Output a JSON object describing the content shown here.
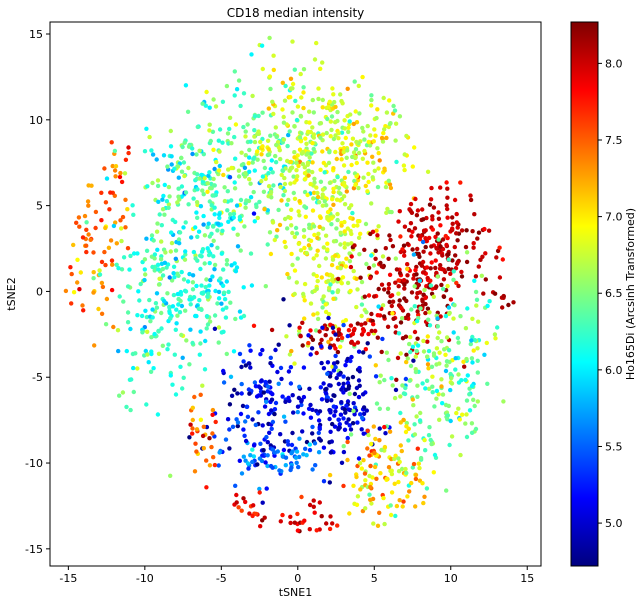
{
  "chart_data": {
    "type": "scatter",
    "title": "CD18 median intensity",
    "xlabel": "tSNE1",
    "ylabel": "tSNE2",
    "xlim": [
      -16.2,
      15.9
    ],
    "ylim": [
      -16.0,
      15.7
    ],
    "xticks": [
      -15,
      -10,
      -5,
      0,
      5,
      10,
      15
    ],
    "yticks": [
      -15,
      -10,
      -5,
      0,
      5,
      10,
      15
    ],
    "grid": false,
    "colormap": "jet",
    "colorbar": {
      "label": "Ho165Di (Arcsinh Transformed)",
      "range": [
        4.72,
        8.27
      ],
      "ticks": [
        5.0,
        5.5,
        6.0,
        6.5,
        7.0,
        7.5,
        8.0
      ],
      "tick_labels": [
        "5.0",
        "5.5",
        "6.0",
        "6.5",
        "7.0",
        "7.5",
        "8.0"
      ]
    },
    "clusters": [
      {
        "cx": -13.6,
        "cy": 2.0,
        "sx": 1.0,
        "sy": 2.5,
        "n": 70,
        "v": 7.45,
        "vs": 0.25
      },
      {
        "cx": -11.8,
        "cy": 6.5,
        "sx": 0.5,
        "sy": 2.0,
        "n": 25,
        "v": 7.4,
        "vs": 0.3
      },
      {
        "cx": -9.2,
        "cy": -1.0,
        "sx": 1.8,
        "sy": 2.8,
        "n": 180,
        "v": 6.3,
        "vs": 0.25
      },
      {
        "cx": -6.2,
        "cy": 5.8,
        "sx": 2.2,
        "sy": 2.2,
        "n": 220,
        "v": 6.35,
        "vs": 0.3
      },
      {
        "cx": -6.4,
        "cy": 0.2,
        "sx": 1.5,
        "sy": 2.0,
        "n": 120,
        "v": 6.15,
        "vs": 0.2
      },
      {
        "cx": -2.6,
        "cy": 7.8,
        "sx": 1.8,
        "sy": 2.5,
        "n": 150,
        "v": 6.4,
        "vs": 0.3
      },
      {
        "cx": 0.6,
        "cy": 8.8,
        "sx": 2.0,
        "sy": 2.2,
        "n": 230,
        "v": 6.75,
        "vs": 0.22
      },
      {
        "cx": 3.8,
        "cy": 7.8,
        "sx": 1.8,
        "sy": 2.0,
        "n": 150,
        "v": 6.8,
        "vs": 0.25
      },
      {
        "cx": 2.2,
        "cy": 2.0,
        "sx": 1.6,
        "sy": 2.6,
        "n": 230,
        "v": 6.8,
        "vs": 0.2
      },
      {
        "cx": 6.8,
        "cy": 0.2,
        "sx": 1.8,
        "sy": 1.8,
        "n": 170,
        "v": 8.05,
        "vs": 0.15
      },
      {
        "cx": 9.6,
        "cy": 3.0,
        "sx": 1.6,
        "sy": 1.4,
        "n": 150,
        "v": 8.05,
        "vs": 0.15
      },
      {
        "cx": 2.6,
        "cy": -2.6,
        "sx": 1.8,
        "sy": 0.5,
        "n": 60,
        "v": 8.0,
        "vs": 0.15
      },
      {
        "cx": -2.4,
        "cy": -6.6,
        "sx": 1.5,
        "sy": 2.0,
        "n": 150,
        "v": 5.15,
        "vs": 0.25
      },
      {
        "cx": 2.6,
        "cy": -6.2,
        "sx": 1.5,
        "sy": 1.8,
        "n": 170,
        "v": 5.0,
        "vs": 0.2
      },
      {
        "cx": -1.4,
        "cy": -9.8,
        "sx": 1.6,
        "sy": 0.7,
        "n": 60,
        "v": 5.6,
        "vs": 0.2
      },
      {
        "cx": 9.0,
        "cy": -4.8,
        "sx": 2.0,
        "sy": 3.0,
        "n": 260,
        "v": 6.45,
        "vs": 0.3
      },
      {
        "cx": 5.8,
        "cy": -10.6,
        "sx": 1.6,
        "sy": 1.4,
        "n": 120,
        "v": 7.1,
        "vs": 0.3
      },
      {
        "cx": -6.4,
        "cy": -8.4,
        "sx": 0.6,
        "sy": 1.3,
        "n": 30,
        "v": 7.55,
        "vs": 0.25
      },
      {
        "cx": -2.8,
        "cy": -12.6,
        "sx": 0.8,
        "sy": 0.5,
        "n": 20,
        "v": 7.9,
        "vs": 0.2
      },
      {
        "cx": 1.0,
        "cy": -13.4,
        "sx": 0.9,
        "sy": 0.6,
        "n": 25,
        "v": 7.95,
        "vs": 0.2
      },
      {
        "cx": 13.6,
        "cy": -0.2,
        "sx": 0.5,
        "sy": 0.4,
        "n": 10,
        "v": 8.1,
        "vs": 0.1
      }
    ]
  }
}
